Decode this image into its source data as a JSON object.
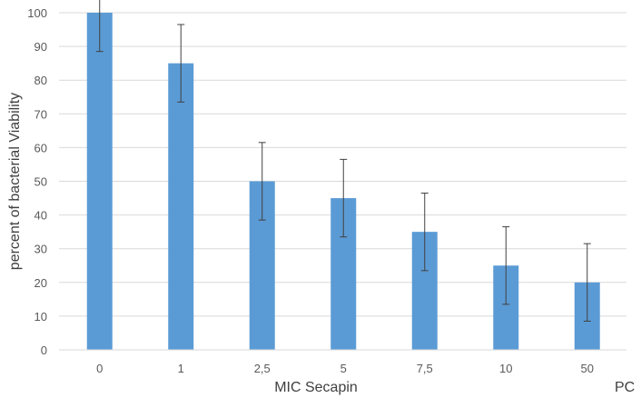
{
  "chart_data": {
    "type": "bar",
    "categories": [
      "0",
      "1",
      "2,5",
      "5",
      "7,5",
      "10",
      "50"
    ],
    "values": [
      100,
      85,
      50,
      45,
      35,
      25,
      20
    ],
    "error": [
      11.5,
      11.5,
      11.5,
      11.5,
      11.5,
      11.5,
      11.5
    ],
    "xlabel": "MIC Secapin",
    "ylabel": "percent of bacterial Viability",
    "extra_xlabel": "PC",
    "ylim": [
      0,
      100
    ],
    "yticks": [
      0,
      10,
      20,
      30,
      40,
      50,
      60,
      70,
      80,
      90,
      100
    ],
    "grid": true,
    "bar_color": "#5b9bd5"
  }
}
